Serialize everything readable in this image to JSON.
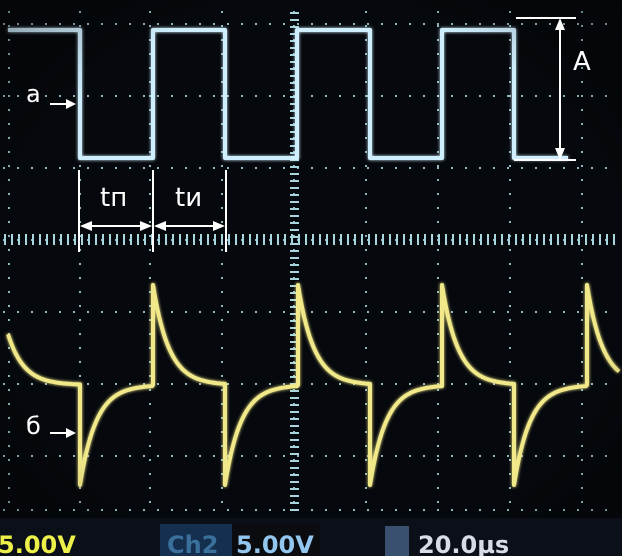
{
  "annotations": {
    "label_a": "а",
    "label_b": "б",
    "label_t_pause": "tп",
    "label_t_pulse": "tи",
    "label_amplitude": "A"
  },
  "status_bar": {
    "ch1_volts": "5.00V",
    "ch2_label": "Ch2",
    "ch2_volts": "5.00V",
    "timebase": "20.0µs"
  },
  "colors": {
    "screen_bg": "#05080c",
    "grid": "#a8d6de",
    "trace_square": "#cfefff",
    "trace_pulse": "#f1e889",
    "annotation": "#ffffff",
    "status_bg": "#0b0f18",
    "status_text_yellow": "#eef04a",
    "status_text_blue": "#93c6ee",
    "status_text_white": "#d8dce6"
  }
}
